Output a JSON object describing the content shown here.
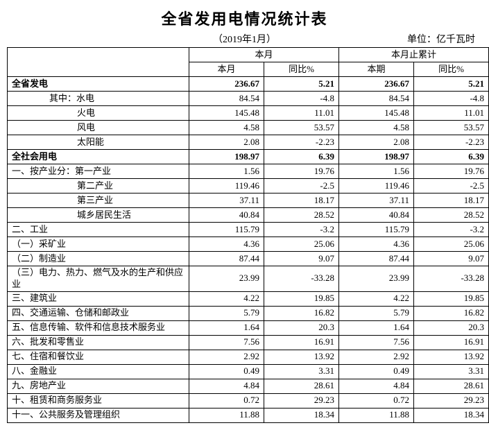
{
  "title": "全省发用电情况统计表",
  "period": "（2019年1月）",
  "unit": "单位：亿千瓦时",
  "headers": {
    "group1": "本月",
    "group2": "本月止累计",
    "sub1": "本月",
    "sub2": "同比%",
    "sub3": "本期",
    "sub4": "同比%"
  },
  "rows": [
    {
      "label": "全省发电",
      "v1": "236.67",
      "v2": "5.21",
      "v3": "236.67",
      "v4": "5.21",
      "bold": true,
      "indent": ""
    },
    {
      "label": "其中：水电",
      "v1": "84.54",
      "v2": "-4.8",
      "v3": "84.54",
      "v4": "-4.8",
      "bold": false,
      "indent": "indent1"
    },
    {
      "label": "火电",
      "v1": "145.48",
      "v2": "11.01",
      "v3": "145.48",
      "v4": "11.01",
      "bold": false,
      "indent": "indent2"
    },
    {
      "label": "风电",
      "v1": "4.58",
      "v2": "53.57",
      "v3": "4.58",
      "v4": "53.57",
      "bold": false,
      "indent": "indent2"
    },
    {
      "label": "太阳能",
      "v1": "2.08",
      "v2": "-2.23",
      "v3": "2.08",
      "v4": "-2.23",
      "bold": false,
      "indent": "indent2"
    },
    {
      "label": "全社会用电",
      "v1": "198.97",
      "v2": "6.39",
      "v3": "198.97",
      "v4": "6.39",
      "bold": true,
      "indent": ""
    },
    {
      "label": "一、按产业分：第一产业",
      "v1": "1.56",
      "v2": "19.76",
      "v3": "1.56",
      "v4": "19.76",
      "bold": false,
      "indent": ""
    },
    {
      "label": "第二产业",
      "v1": "119.46",
      "v2": "-2.5",
      "v3": "119.46",
      "v4": "-2.5",
      "bold": false,
      "indent": "indent2"
    },
    {
      "label": "第三产业",
      "v1": "37.11",
      "v2": "18.17",
      "v3": "37.11",
      "v4": "18.17",
      "bold": false,
      "indent": "indent2"
    },
    {
      "label": "城乡居民生活",
      "v1": "40.84",
      "v2": "28.52",
      "v3": "40.84",
      "v4": "28.52",
      "bold": false,
      "indent": "indent2"
    },
    {
      "label": "二、工业",
      "v1": "115.79",
      "v2": "-3.2",
      "v3": "115.79",
      "v4": "-3.2",
      "bold": false,
      "indent": ""
    },
    {
      "label": "（一）采矿业",
      "v1": "4.36",
      "v2": "25.06",
      "v3": "4.36",
      "v4": "25.06",
      "bold": false,
      "indent": ""
    },
    {
      "label": "（二）制造业",
      "v1": "87.44",
      "v2": "9.07",
      "v3": "87.44",
      "v4": "9.07",
      "bold": false,
      "indent": ""
    },
    {
      "label": "（三）电力、热力、燃气及水的生产和供应业",
      "v1": "23.99",
      "v2": "-33.28",
      "v3": "23.99",
      "v4": "-33.28",
      "bold": false,
      "indent": ""
    },
    {
      "label": "三、建筑业",
      "v1": "4.22",
      "v2": "19.85",
      "v3": "4.22",
      "v4": "19.85",
      "bold": false,
      "indent": ""
    },
    {
      "label": "四、交通运输、仓储和邮政业",
      "v1": "5.79",
      "v2": "16.82",
      "v3": "5.79",
      "v4": "16.82",
      "bold": false,
      "indent": ""
    },
    {
      "label": "五、信息传输、软件和信息技术服务业",
      "v1": "1.64",
      "v2": "20.3",
      "v3": "1.64",
      "v4": "20.3",
      "bold": false,
      "indent": ""
    },
    {
      "label": "六、批发和零售业",
      "v1": "7.56",
      "v2": "16.91",
      "v3": "7.56",
      "v4": "16.91",
      "bold": false,
      "indent": ""
    },
    {
      "label": "七、住宿和餐饮业",
      "v1": "2.92",
      "v2": "13.92",
      "v3": "2.92",
      "v4": "13.92",
      "bold": false,
      "indent": ""
    },
    {
      "label": "八、金融业",
      "v1": "0.49",
      "v2": "3.31",
      "v3": "0.49",
      "v4": "3.31",
      "bold": false,
      "indent": ""
    },
    {
      "label": "九、房地产业",
      "v1": "4.84",
      "v2": "28.61",
      "v3": "4.84",
      "v4": "28.61",
      "bold": false,
      "indent": ""
    },
    {
      "label": "十、租赁和商务服务业",
      "v1": "0.72",
      "v2": "29.23",
      "v3": "0.72",
      "v4": "29.23",
      "bold": false,
      "indent": ""
    },
    {
      "label": "十一、公共服务及管理组织",
      "v1": "11.88",
      "v2": "18.34",
      "v3": "11.88",
      "v4": "18.34",
      "bold": false,
      "indent": ""
    }
  ],
  "style": {
    "background_color": "#ffffff",
    "border_color": "#000000",
    "font_family": "SimSun",
    "title_font": "KaiTi",
    "title_fontsize": 22,
    "body_fontsize": 13
  }
}
